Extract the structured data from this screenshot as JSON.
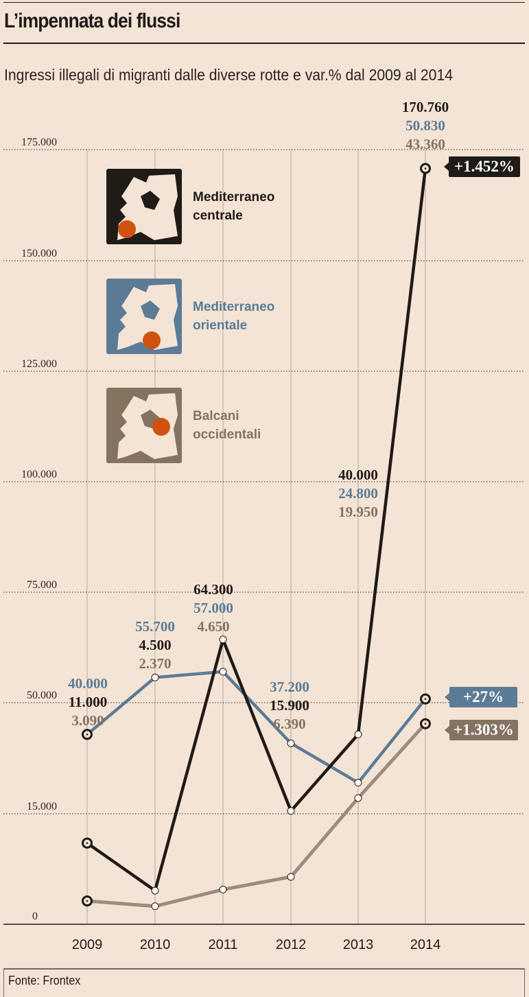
{
  "header": {
    "title": "L’impennata dei flussi",
    "subtitle": "Ingressi illegali di migranti dalle diverse rotte e var.% dal 2009 al 2014"
  },
  "legend": [
    {
      "label_line1": "Mediterraneo",
      "label_line2": "centrale",
      "color": "#1f1b17",
      "icon": "europe-map-icon"
    },
    {
      "label_line1": "Mediterraneo",
      "label_line2": "orientale",
      "color": "#5b7b96",
      "icon": "europe-map-icon"
    },
    {
      "label_line1": "Balcani",
      "label_line2": "occidentali",
      "color": "#857362",
      "icon": "europe-map-icon"
    }
  ],
  "badges": [
    {
      "text": "+1.452%",
      "series": "Mediterraneo centrale",
      "color": "#1f1b17"
    },
    {
      "text": "+27%",
      "series": "Mediterraneo orientale",
      "color": "#5b7b96"
    },
    {
      "text": "+1.303%",
      "series": "Balcani occidentali",
      "color": "#857362"
    }
  ],
  "footer": {
    "source": "Fonte: Frontex"
  },
  "chart_data": {
    "type": "line",
    "title": "L’impennata dei flussi",
    "subtitle": "Ingressi illegali di migranti dalle diverse rotte e var.% dal 2009 al 2014",
    "x": [
      "2009",
      "2010",
      "2011",
      "2012",
      "2013",
      "2014"
    ],
    "yticks": [
      0,
      15000,
      50000,
      75000,
      100000,
      125000,
      150000,
      175000
    ],
    "ytick_labels": [
      "0",
      "15.000",
      "50.000",
      "75.000",
      "100.000",
      "125.000",
      "150.000",
      "175.000"
    ],
    "ylim": [
      0,
      175000
    ],
    "grid": true,
    "series": [
      {
        "name": "Mediterraneo centrale",
        "color": "#1f1b17",
        "values": [
          11000,
          4500,
          64300,
          15900,
          40000,
          170760
        ],
        "labels": [
          "11.000",
          "4.500",
          "64.300",
          "15.900",
          "40.000",
          "170.760"
        ]
      },
      {
        "name": "Mediterraneo orientale",
        "color": "#5b7b96",
        "values": [
          40000,
          55700,
          57000,
          37200,
          24800,
          50830
        ],
        "labels": [
          "40.000",
          "55.700",
          "57.000",
          "37.200",
          "24.800",
          "50.830"
        ]
      },
      {
        "name": "Balcani occidentali",
        "color": "#9c8c7e",
        "label_color": "#857362",
        "values": [
          3090,
          2370,
          4650,
          6390,
          19950,
          43360
        ],
        "labels": [
          "3.090",
          "2.370",
          "4.650",
          "6.390",
          "19.950",
          "43.360"
        ]
      }
    ],
    "pct_change_2009_2014": [
      "+1.452%",
      "+27%",
      "+1.303%"
    ],
    "source": "Fonte: Frontex"
  }
}
